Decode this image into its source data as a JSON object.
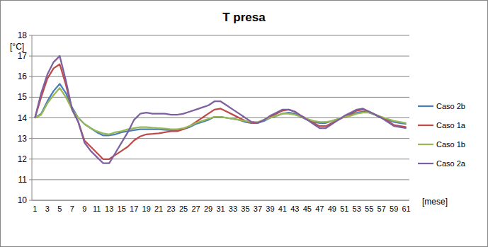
{
  "chart_data": {
    "type": "line",
    "title": "T  presa",
    "y_label": "[°C]",
    "x_label": "[mese]",
    "categories": [
      "1",
      null,
      "3",
      null,
      "5",
      null,
      "7",
      null,
      "9",
      null,
      "11",
      null,
      "13",
      null,
      "15",
      null,
      "17",
      null,
      "19",
      null,
      "21",
      null,
      "23",
      null,
      "25",
      null,
      "27",
      null,
      "29",
      null,
      "31",
      null,
      "33",
      null,
      "35",
      null,
      "37",
      null,
      "39",
      null,
      "41",
      null,
      "43",
      null,
      "45",
      null,
      "47",
      null,
      "49",
      null,
      "51",
      null,
      "53",
      null,
      "55",
      null,
      "57",
      null,
      "59",
      null,
      "61"
    ],
    "series": [
      {
        "name": "Caso 2b",
        "color": "#4a7ebb",
        "values": [
          14.0,
          14.2,
          14.8,
          15.3,
          15.65,
          15.2,
          14.5,
          14.0,
          13.7,
          13.5,
          13.3,
          13.15,
          13.15,
          13.2,
          13.3,
          13.35,
          13.4,
          13.45,
          13.45,
          13.45,
          13.45,
          13.42,
          13.4,
          13.4,
          13.45,
          13.55,
          13.7,
          13.8,
          13.9,
          14.05,
          14.05,
          14.0,
          13.95,
          13.9,
          13.8,
          13.75,
          13.75,
          13.85,
          14.0,
          14.1,
          14.2,
          14.25,
          14.2,
          14.05,
          13.9,
          13.8,
          13.75,
          13.75,
          13.85,
          13.95,
          14.05,
          14.15,
          14.25,
          14.3,
          14.25,
          14.15,
          14.0,
          13.9,
          13.8,
          13.75,
          13.7
        ]
      },
      {
        "name": "Caso 1a",
        "color": "#be4b48",
        "values": [
          14.0,
          15.0,
          15.9,
          16.4,
          16.6,
          15.6,
          14.4,
          13.8,
          12.9,
          12.6,
          12.3,
          12.0,
          12.0,
          12.2,
          12.4,
          12.6,
          12.9,
          13.1,
          13.2,
          13.22,
          13.25,
          13.3,
          13.35,
          13.35,
          13.45,
          13.6,
          13.8,
          14.0,
          14.2,
          14.4,
          14.45,
          14.3,
          14.15,
          14.0,
          13.85,
          13.75,
          13.75,
          13.9,
          14.05,
          14.2,
          14.35,
          14.4,
          14.3,
          14.1,
          13.95,
          13.75,
          13.6,
          13.6,
          13.75,
          13.9,
          14.05,
          14.2,
          14.35,
          14.4,
          14.3,
          14.15,
          14.0,
          13.85,
          13.65,
          13.6,
          13.55
        ]
      },
      {
        "name": "Caso 1b",
        "color": "#98b954",
        "values": [
          14.0,
          14.15,
          14.7,
          15.1,
          15.45,
          15.0,
          14.4,
          14.0,
          13.7,
          13.5,
          13.35,
          13.25,
          13.2,
          13.3,
          13.35,
          13.45,
          13.5,
          13.55,
          13.55,
          13.52,
          13.5,
          13.48,
          13.45,
          13.45,
          13.5,
          13.6,
          13.75,
          13.85,
          13.95,
          14.05,
          14.05,
          14.0,
          13.95,
          13.9,
          13.85,
          13.8,
          13.8,
          13.9,
          14.0,
          14.1,
          14.2,
          14.2,
          14.15,
          14.05,
          13.95,
          13.85,
          13.8,
          13.8,
          13.85,
          13.95,
          14.05,
          14.1,
          14.2,
          14.25,
          14.25,
          14.15,
          14.05,
          13.95,
          13.85,
          13.8,
          13.75
        ]
      },
      {
        "name": "Caso 2a",
        "color": "#7d60a0",
        "values": [
          14.0,
          15.2,
          16.1,
          16.7,
          17.0,
          15.8,
          14.4,
          13.8,
          12.8,
          12.4,
          12.1,
          11.8,
          11.8,
          12.3,
          12.8,
          13.3,
          13.9,
          14.2,
          14.25,
          14.2,
          14.2,
          14.2,
          14.15,
          14.15,
          14.2,
          14.3,
          14.4,
          14.5,
          14.6,
          14.8,
          14.8,
          14.6,
          14.4,
          14.2,
          14.0,
          13.8,
          13.75,
          13.9,
          14.1,
          14.25,
          14.4,
          14.4,
          14.3,
          14.1,
          13.9,
          13.7,
          13.5,
          13.5,
          13.7,
          13.9,
          14.1,
          14.25,
          14.4,
          14.45,
          14.3,
          14.15,
          14.0,
          13.8,
          13.6,
          13.55,
          13.5
        ]
      }
    ],
    "ylim": [
      10,
      18
    ],
    "yticks": [
      10,
      11,
      12,
      13,
      14,
      15,
      16,
      17,
      18
    ],
    "grid": true,
    "legend": "right"
  }
}
